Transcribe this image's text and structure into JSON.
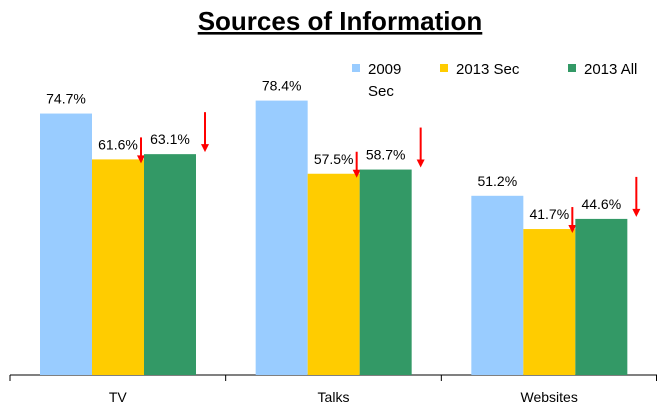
{
  "chart_data": {
    "type": "bar",
    "title": "Sources of Information",
    "categories": [
      "TV",
      "Talks",
      "Websites"
    ],
    "series": [
      {
        "name": "2009 Sec",
        "color": "#99ccff",
        "values": [
          74.7,
          78.4,
          51.2
        ],
        "value_labels": [
          "74.7%",
          "78.4%",
          "51.2%"
        ]
      },
      {
        "name": "2013 Sec",
        "color": "#ffcc00",
        "values": [
          61.6,
          57.5,
          41.7
        ],
        "value_labels": [
          "61.6%",
          "57.5%",
          "41.7%"
        ]
      },
      {
        "name": "2013 All",
        "color": "#339966",
        "values": [
          63.1,
          58.7,
          44.6
        ],
        "value_labels": [
          "63.1%",
          "58.7%",
          "44.6%"
        ]
      }
    ]
  }
}
